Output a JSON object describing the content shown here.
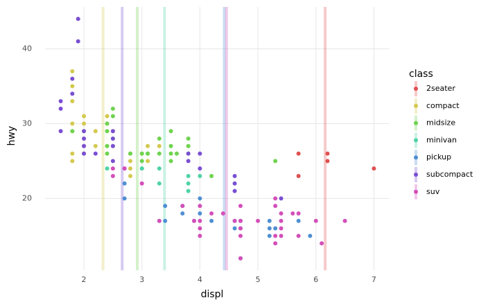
{
  "chart_data": {
    "type": "scatter",
    "x_label": "displ",
    "y_label": "hwy",
    "legend_title": "class",
    "xlim": [
      1.33,
      7.27
    ],
    "ylim": [
      10.4,
      45.6
    ],
    "xticks": [
      2,
      3,
      4,
      5,
      6,
      7
    ],
    "yticks": [
      20,
      30,
      40
    ],
    "grid": true,
    "legend": "right",
    "series": [
      {
        "name": "2seater",
        "color": "#e05050",
        "mean_x": 6.16,
        "x": [
          5.7,
          5.7,
          6.2,
          6.2,
          7.0
        ],
        "values": [
          26,
          23,
          26,
          25,
          24
        ]
      },
      {
        "name": "compact",
        "color": "#d4c94e",
        "mean_x": 2.33,
        "x": [
          1.8,
          2.0,
          2.0,
          2.8,
          3.1,
          1.8,
          1.8,
          2.0,
          2.0,
          2.8,
          3.1,
          2.2,
          2.2,
          2.4,
          2.4,
          3.0,
          3.3,
          1.8,
          1.8,
          1.8,
          2.4,
          2.5,
          2.8,
          2.0,
          2.8,
          1.8,
          2.5
        ],
        "values": [
          29,
          31,
          30,
          26,
          27,
          26,
          25,
          28,
          27,
          25,
          25,
          27,
          29,
          31,
          30,
          26,
          27,
          35,
          37,
          33,
          27,
          27,
          23,
          26,
          24,
          30,
          29
        ]
      },
      {
        "name": "midsize",
        "color": "#6fd34f",
        "mean_x": 2.92,
        "x": [
          2.4,
          2.4,
          3.1,
          3.5,
          3.6,
          2.5,
          2.5,
          3.5,
          3.0,
          3.3,
          3.8,
          3.8,
          3.3,
          3.0,
          3.5,
          2.8,
          3.0,
          2.4,
          4.2,
          5.3,
          1.8,
          2.0,
          2.5,
          3.1,
          3.5,
          3.8,
          2.4
        ],
        "values": [
          27,
          30,
          26,
          29,
          26,
          32,
          31,
          26,
          26,
          28,
          28,
          27,
          26,
          25,
          27,
          26,
          24,
          29,
          23,
          25,
          29,
          29,
          28,
          26,
          25,
          26,
          26
        ]
      },
      {
        "name": "minivan",
        "color": "#4fd3a6",
        "mean_x": 3.39,
        "x": [
          2.4,
          3.0,
          3.3,
          3.3,
          3.8,
          3.8,
          3.8,
          4.0,
          3.3
        ],
        "values": [
          24,
          24,
          22,
          24,
          22,
          21,
          23,
          23,
          17
        ]
      },
      {
        "name": "pickup",
        "color": "#4f8fd3",
        "mean_x": 4.42,
        "x": [
          2.7,
          2.7,
          3.4,
          3.4,
          3.7,
          3.7,
          3.9,
          4.0,
          4.0,
          4.2,
          4.6,
          4.6,
          4.7,
          4.7,
          5.2,
          5.2,
          5.3,
          5.7,
          5.9,
          4.7,
          5.2
        ],
        "values": [
          20,
          22,
          19,
          17,
          18,
          19,
          17,
          20,
          18,
          17,
          17,
          16,
          17,
          16,
          17,
          15,
          16,
          17,
          15,
          12,
          16
        ]
      },
      {
        "name": "subcompact",
        "color": "#7a4fd3",
        "mean_x": 2.66,
        "x": [
          1.6,
          1.6,
          1.6,
          1.8,
          1.8,
          1.9,
          1.9,
          2.0,
          2.0,
          2.0,
          2.0,
          2.2,
          2.5,
          2.5,
          2.5,
          2.5,
          2.7,
          4.0,
          4.0,
          4.6,
          4.6,
          4.6,
          5.4,
          3.8,
          3.8
        ],
        "values": [
          33,
          32,
          29,
          34,
          36,
          44,
          41,
          29,
          26,
          28,
          27,
          26,
          25,
          28,
          29,
          27,
          24,
          26,
          24,
          23,
          22,
          21,
          20,
          26,
          25
        ]
      },
      {
        "name": "suv",
        "color": "#d34fb9",
        "mean_x": 4.46,
        "x": [
          2.5,
          2.5,
          2.7,
          3.0,
          3.3,
          3.7,
          3.9,
          4.0,
          4.0,
          4.0,
          4.2,
          4.4,
          4.6,
          4.7,
          4.7,
          4.7,
          4.7,
          5.0,
          5.3,
          5.3,
          5.3,
          5.3,
          5.4,
          5.4,
          5.4,
          5.4,
          5.6,
          5.7,
          5.7,
          6.0,
          6.1,
          6.5,
          4.0,
          4.7
        ],
        "values": [
          23,
          24,
          24,
          22,
          17,
          19,
          17,
          17,
          19,
          15,
          18,
          18,
          17,
          19,
          17,
          15,
          12,
          17,
          20,
          19,
          14,
          15,
          18,
          17,
          16,
          15,
          18,
          18,
          15,
          17,
          14,
          17,
          16,
          16
        ]
      }
    ]
  }
}
